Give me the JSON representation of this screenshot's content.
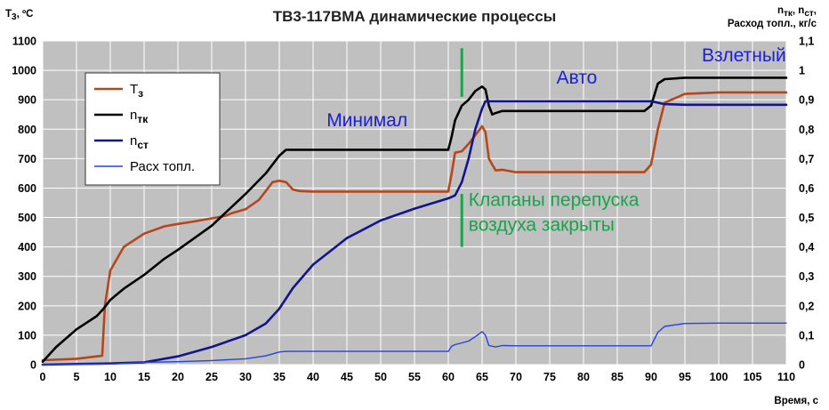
{
  "chart_data": {
    "type": "line",
    "title": "ТВ3-117ВМА динамические процессы",
    "xlabel": "Время, с",
    "ylabel_left": {
      "main": "T",
      "sub": "3",
      "rest": ", ºC"
    },
    "ylabel_right": {
      "line1_parts": [
        {
          "main": "n",
          "sub": "тк"
        },
        {
          "main": ", n",
          "sub": "ст"
        },
        {
          "main": ",",
          "sub": ""
        }
      ],
      "line2": "Расход топл., кг/с"
    },
    "xlim": [
      0,
      110
    ],
    "ylim_left": [
      0,
      1100
    ],
    "ylim_right": [
      0,
      1.1
    ],
    "x_ticks": [
      "0",
      "5",
      "10",
      "15",
      "20",
      "25",
      "30",
      "35",
      "40",
      "45",
      "50",
      "55",
      "60",
      "65",
      "70",
      "75",
      "80",
      "85",
      "90",
      "95",
      "100",
      "105",
      "110"
    ],
    "y_left_ticks": [
      "0",
      "100",
      "200",
      "300",
      "400",
      "500",
      "600",
      "700",
      "800",
      "900",
      "1000",
      "1100"
    ],
    "y_right_ticks": [
      "0",
      "0,1",
      "0,2",
      "0,3",
      "0,4",
      "0,5",
      "0,6",
      "0,7",
      "0,8",
      "0,9",
      "1",
      "1,1"
    ],
    "grid": true,
    "legend_position": "top-left",
    "colors": {
      "plot_bg": "#c0c0c0",
      "grid": "#ffffff",
      "T3": "#b5471c",
      "n_tk": "#000000",
      "n_st": "#16148a",
      "fuel": "#2642e0",
      "annot_blue": "#1a20d8",
      "annot_green": "#1aa34a"
    },
    "series": [
      {
        "name": "T3",
        "legend_main": "T",
        "legend_sub": "з",
        "axis": "left",
        "color_key": "T3",
        "x": [
          0,
          5,
          8,
          8.8,
          9.2,
          10,
          12,
          15,
          18,
          20,
          22,
          25,
          27,
          28,
          30,
          32,
          34,
          35,
          36,
          37,
          38,
          40,
          45,
          50,
          55,
          60,
          60.5,
          61,
          62,
          63,
          64,
          65,
          65.5,
          66,
          67,
          68,
          70,
          80,
          89,
          90,
          91,
          92,
          95,
          100,
          105,
          110
        ],
        "y": [
          15,
          20,
          28,
          30,
          200,
          320,
          400,
          445,
          470,
          478,
          485,
          497,
          505,
          515,
          528,
          560,
          620,
          625,
          620,
          595,
          590,
          588,
          588,
          588,
          588,
          588,
          650,
          720,
          725,
          750,
          780,
          810,
          790,
          700,
          660,
          662,
          654,
          654,
          654,
          680,
          800,
          890,
          920,
          925,
          925,
          925
        ]
      },
      {
        "name": "n_tk",
        "legend_main": "n",
        "legend_sub": "тк",
        "axis": "right",
        "color_key": "n_tk",
        "x": [
          0,
          2,
          5,
          8,
          9,
          10,
          12,
          15,
          18,
          20,
          25,
          30,
          33,
          35,
          36,
          40,
          50,
          60,
          60.5,
          61,
          62,
          63,
          64,
          65,
          65.5,
          66,
          66.5,
          67,
          68,
          70,
          80,
          89,
          90,
          91,
          92,
          95,
          100,
          105,
          110
        ],
        "y": [
          0.01,
          0.06,
          0.12,
          0.165,
          0.19,
          0.22,
          0.258,
          0.305,
          0.36,
          0.39,
          0.472,
          0.58,
          0.65,
          0.71,
          0.73,
          0.73,
          0.73,
          0.73,
          0.775,
          0.83,
          0.88,
          0.9,
          0.93,
          0.945,
          0.935,
          0.88,
          0.85,
          0.855,
          0.862,
          0.862,
          0.862,
          0.862,
          0.88,
          0.955,
          0.97,
          0.975,
          0.975,
          0.975,
          0.975
        ]
      },
      {
        "name": "n_st",
        "legend_main": "n",
        "legend_sub": "ст",
        "axis": "right",
        "color_key": "n_st",
        "x": [
          0,
          5,
          10,
          15,
          20,
          25,
          30,
          33,
          35,
          37,
          40,
          45,
          50,
          55,
          60,
          60.5,
          61,
          62,
          63,
          64,
          65,
          65.5,
          66,
          70,
          80,
          90,
          92,
          95,
          100,
          110
        ],
        "y": [
          0,
          0.002,
          0.004,
          0.008,
          0.028,
          0.06,
          0.1,
          0.14,
          0.19,
          0.26,
          0.34,
          0.43,
          0.49,
          0.53,
          0.565,
          0.57,
          0.575,
          0.62,
          0.7,
          0.8,
          0.87,
          0.895,
          0.895,
          0.895,
          0.895,
          0.895,
          0.885,
          0.883,
          0.883,
          0.883
        ]
      },
      {
        "name": "fuel",
        "legend_label": "Расх топл.",
        "axis": "right",
        "color_key": "fuel",
        "x": [
          0,
          10,
          15,
          20,
          25,
          30,
          33,
          35,
          36,
          40,
          50,
          60,
          60.5,
          61,
          63,
          64,
          65,
          65.5,
          66,
          67,
          68,
          70,
          80,
          90,
          91,
          92,
          95,
          100,
          110
        ],
        "y": [
          0,
          0.002,
          0.008,
          0.01,
          0.014,
          0.02,
          0.03,
          0.043,
          0.045,
          0.045,
          0.045,
          0.045,
          0.063,
          0.068,
          0.08,
          0.095,
          0.112,
          0.1,
          0.065,
          0.06,
          0.065,
          0.064,
          0.064,
          0.064,
          0.11,
          0.13,
          0.14,
          0.141,
          0.141
        ]
      }
    ],
    "annotations": [
      {
        "text": "Минимал",
        "x": 42,
        "y_left": 810,
        "color_key": "annot_blue"
      },
      {
        "text": "Авто",
        "x": 76,
        "y_left": 955,
        "color_key": "annot_blue"
      },
      {
        "text": "Взлетный",
        "x": 97.5,
        "y_left": 1030,
        "color_key": "annot_blue"
      },
      {
        "text": "Клапаны перепуска",
        "x": 63,
        "y_left": 540,
        "color_key": "annot_green"
      },
      {
        "text": "воздуха закрыты",
        "x": 63,
        "y_left": 455,
        "color_key": "annot_green"
      }
    ],
    "markers": [
      {
        "x": 62,
        "y_from": 910,
        "y_to": 1075,
        "color_key": "annot_green"
      },
      {
        "x": 62,
        "y_from": 400,
        "y_to": 580,
        "color_key": "annot_green"
      }
    ]
  }
}
